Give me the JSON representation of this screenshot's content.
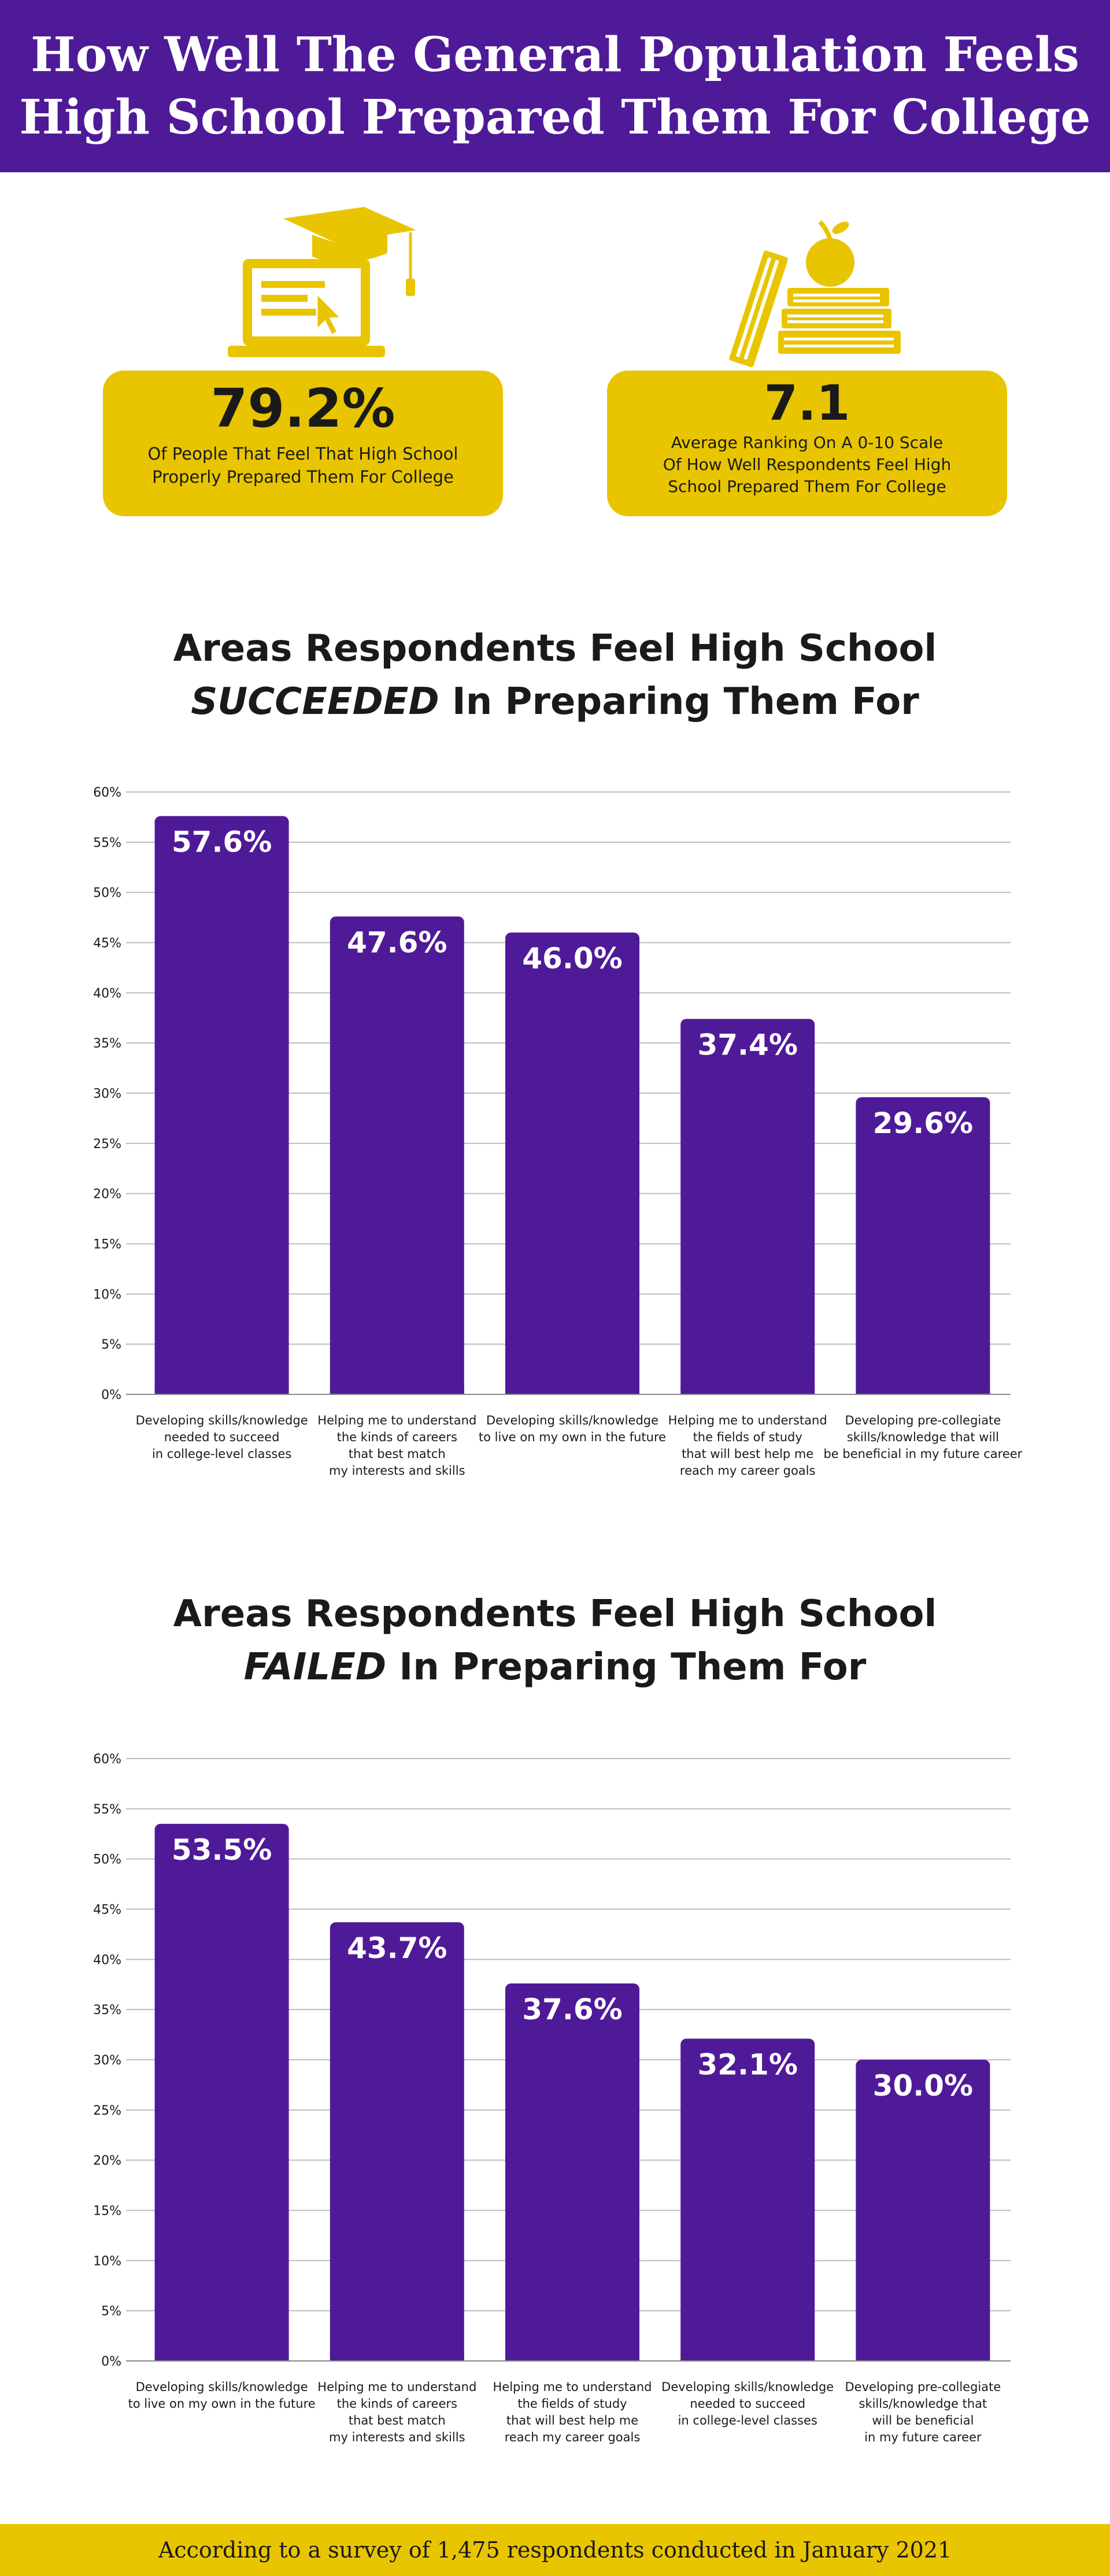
{
  "header": {
    "line1": "How Well The General Population Feels",
    "line2": "High School Prepared Them For College"
  },
  "stats": [
    {
      "value": "79.2%",
      "desc_line1": "Of People That Feel That High School",
      "desc_line2": "Properly Prepared Them For College",
      "icon": "laptop-graduation-cap-icon"
    },
    {
      "value": "7.1",
      "desc_line1": "Average Ranking On A 0-10 Scale",
      "desc_line2": "Of How Well Respondents Feel High",
      "desc_line3": "School Prepared Them For College",
      "icon": "books-apple-icon"
    }
  ],
  "charts": {
    "succeeded": {
      "title_line1": "Areas Respondents Feel High School",
      "title_em": "SUCCEEDED",
      "title_rest": " In Preparing Them For"
    },
    "failed": {
      "title_line1": "Areas Respondents Feel High School",
      "title_em": "FAILED",
      "title_rest": " In Preparing Them For"
    }
  },
  "chart_data": [
    {
      "type": "bar",
      "title": "Areas Respondents Feel High School SUCCEEDED In Preparing Them For",
      "categories": [
        [
          "Developing skills/knowledge",
          "needed to succeed",
          "in college-level classes"
        ],
        [
          "Helping me to understand",
          "the kinds of careers",
          "that best match",
          "my interests and skills"
        ],
        [
          "Developing skills/knowledge",
          "to live on my own in the future"
        ],
        [
          "Helping me to understand",
          "the fields of study",
          "that will best help me",
          "reach my career goals"
        ],
        [
          "Developing pre-collegiate",
          "skills/knowledge that will",
          "be beneficial in my future career"
        ]
      ],
      "values": [
        57.6,
        47.6,
        46.0,
        37.4,
        29.6
      ],
      "value_labels": [
        "57.6%",
        "47.6%",
        "46.0%",
        "37.4%",
        "29.6%"
      ],
      "yticks": [
        "0%",
        "5%",
        "10%",
        "15%",
        "20%",
        "25%",
        "30%",
        "35%",
        "40%",
        "45%",
        "50%",
        "55%",
        "60%"
      ],
      "ylim": [
        0,
        60
      ],
      "grid": true,
      "bar_color": "#4f1a98"
    },
    {
      "type": "bar",
      "title": "Areas Respondents Feel High School FAILED In Preparing Them For",
      "categories": [
        [
          "Developing skills/knowledge",
          "to live on my own in the future"
        ],
        [
          "Helping me to understand",
          "the kinds of careers",
          "that best match",
          "my interests and skills"
        ],
        [
          "Helping me to understand",
          "the fields of study",
          "that will best help me",
          "reach my career goals"
        ],
        [
          "Developing skills/knowledge",
          "needed to succeed",
          "in college-level classes"
        ],
        [
          "Developing pre-collegiate",
          "skills/knowledge that",
          "will be beneficial",
          "in my future career"
        ]
      ],
      "values": [
        53.5,
        43.7,
        37.6,
        32.1,
        30.0
      ],
      "value_labels": [
        "53.5%",
        "43.7%",
        "37.6%",
        "32.1%",
        "30.0%"
      ],
      "yticks": [
        "0%",
        "5%",
        "10%",
        "15%",
        "20%",
        "25%",
        "30%",
        "35%",
        "40%",
        "45%",
        "50%",
        "55%",
        "60%"
      ],
      "ylim": [
        0,
        60
      ],
      "grid": true,
      "bar_color": "#4f1a98"
    }
  ],
  "footer": {
    "text": "According to a survey of 1,475 respondents conducted in January 2021"
  },
  "colors": {
    "purple": "#4f1a98",
    "gold": "#e8c500",
    "text": "#1a1a1a",
    "grid": "#bdbdbd"
  }
}
